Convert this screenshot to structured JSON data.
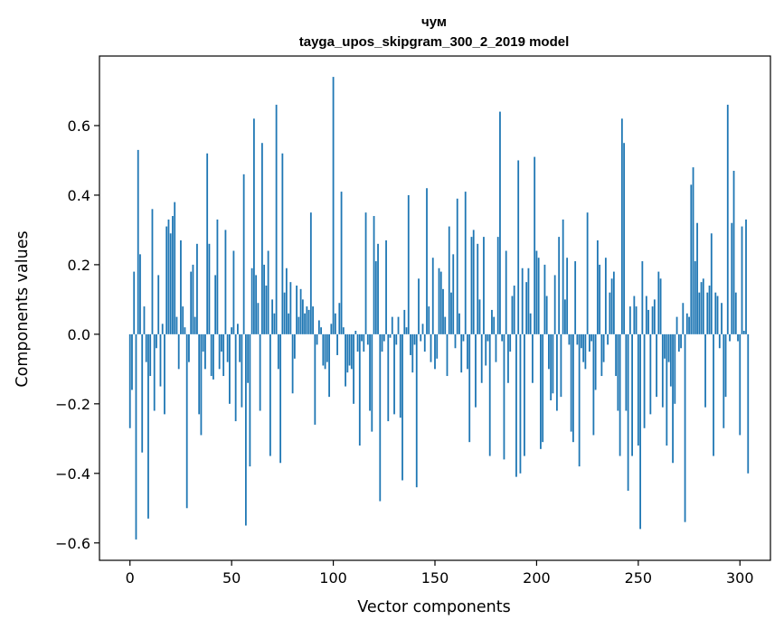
{
  "chart_data": {
    "type": "bar",
    "title": "чум",
    "subtitle": "tayga_upos_skipgram_300_2_2019 model",
    "xlabel": "Vector components",
    "ylabel": "Components values",
    "xlim": [
      -15,
      315
    ],
    "ylim": [
      -0.65,
      0.8
    ],
    "xticks": [
      0,
      50,
      100,
      150,
      200,
      250,
      300
    ],
    "yticks": [
      -0.6,
      -0.4,
      -0.2,
      0.0,
      0.2,
      0.4,
      0.6
    ],
    "xtick_labels": [
      "0",
      "50",
      "100",
      "150",
      "200",
      "250",
      "300"
    ],
    "ytick_labels": [
      "−0.6",
      "−0.4",
      "−0.2",
      "0.0",
      "0.2",
      "0.4",
      "0.6"
    ],
    "grid": false,
    "bar_color": "#1f77b4",
    "x_start": 0,
    "values": [
      -0.27,
      -0.16,
      0.18,
      -0.59,
      0.53,
      0.23,
      -0.34,
      0.08,
      -0.08,
      -0.53,
      -0.12,
      0.36,
      -0.22,
      -0.04,
      0.17,
      -0.15,
      0.03,
      -0.23,
      0.31,
      0.33,
      0.29,
      0.34,
      0.38,
      0.05,
      -0.1,
      0.27,
      0.08,
      0.02,
      -0.5,
      -0.08,
      0.18,
      0.2,
      0.05,
      0.26,
      -0.23,
      -0.29,
      -0.05,
      -0.1,
      0.52,
      0.26,
      -0.12,
      -0.13,
      0.17,
      0.33,
      -0.1,
      -0.05,
      -0.12,
      0.3,
      -0.08,
      -0.2,
      0.02,
      0.24,
      -0.25,
      0.03,
      -0.08,
      -0.21,
      0.46,
      -0.55,
      -0.14,
      -0.38,
      0.19,
      0.62,
      0.17,
      0.09,
      -0.22,
      0.55,
      0.2,
      0.14,
      0.24,
      -0.35,
      0.1,
      0.06,
      0.66,
      -0.1,
      -0.37,
      0.52,
      0.12,
      0.19,
      0.06,
      0.15,
      -0.17,
      -0.07,
      0.14,
      0.05,
      0.13,
      0.1,
      0.06,
      0.08,
      0.07,
      0.35,
      0.08,
      -0.26,
      -0.03,
      0.04,
      0.02,
      -0.09,
      -0.1,
      -0.08,
      -0.18,
      0.03,
      0.74,
      0.06,
      -0.06,
      0.09,
      0.41,
      0.02,
      -0.15,
      -0.11,
      -0.09,
      -0.1,
      -0.2,
      0.01,
      -0.05,
      -0.32,
      -0.02,
      -0.05,
      0.35,
      -0.03,
      -0.22,
      -0.28,
      0.34,
      0.21,
      0.26,
      -0.48,
      -0.05,
      -0.02,
      0.27,
      -0.25,
      -0.01,
      0.05,
      -0.23,
      -0.03,
      0.05,
      -0.24,
      -0.42,
      0.07,
      0.02,
      0.4,
      -0.06,
      -0.11,
      -0.03,
      -0.44,
      0.16,
      -0.02,
      0.03,
      -0.05,
      0.42,
      0.08,
      -0.08,
      0.22,
      -0.1,
      -0.07,
      0.19,
      0.18,
      0.13,
      0.05,
      -0.12,
      0.31,
      0.12,
      0.23,
      -0.04,
      0.39,
      0.06,
      -0.11,
      -0.02,
      0.41,
      -0.1,
      -0.31,
      0.28,
      0.3,
      -0.21,
      0.26,
      0.1,
      -0.14,
      0.28,
      -0.09,
      -0.02,
      -0.35,
      0.07,
      0.05,
      -0.08,
      0.28,
      0.64,
      -0.02,
      -0.36,
      0.24,
      -0.14,
      -0.05,
      0.11,
      0.14,
      -0.41,
      0.5,
      -0.4,
      0.19,
      -0.35,
      0.15,
      0.19,
      0.06,
      -0.14,
      0.51,
      0.24,
      0.22,
      -0.33,
      -0.31,
      0.2,
      0.11,
      -0.1,
      -0.19,
      -0.17,
      0.17,
      -0.22,
      0.28,
      -0.18,
      0.33,
      0.1,
      0.22,
      -0.03,
      -0.28,
      -0.31,
      0.21,
      -0.03,
      -0.38,
      -0.04,
      -0.08,
      -0.1,
      0.35,
      -0.05,
      -0.02,
      -0.29,
      -0.16,
      0.27,
      0.2,
      -0.12,
      -0.08,
      0.22,
      -0.03,
      0.12,
      0.16,
      0.18,
      -0.12,
      -0.22,
      -0.35,
      0.62,
      0.55,
      -0.22,
      -0.45,
      0.08,
      -0.35,
      0.11,
      0.08,
      -0.32,
      -0.56,
      0.21,
      -0.27,
      0.11,
      0.07,
      -0.23,
      0.08,
      0.1,
      -0.18,
      0.18,
      0.16,
      -0.21,
      -0.07,
      -0.32,
      -0.08,
      -0.15,
      -0.37,
      -0.2,
      0.05,
      -0.05,
      -0.04,
      0.09,
      -0.54,
      0.06,
      0.05,
      0.43,
      0.48,
      0.21,
      0.32,
      0.12,
      0.15,
      0.16,
      -0.21,
      0.12,
      0.14,
      0.29,
      -0.35,
      0.12,
      0.11,
      -0.04,
      0.09,
      -0.27,
      -0.18,
      0.66,
      -0.02,
      0.32,
      0.47,
      0.12,
      -0.02,
      -0.29,
      0.31,
      0.01,
      0.33,
      -0.4
    ]
  }
}
